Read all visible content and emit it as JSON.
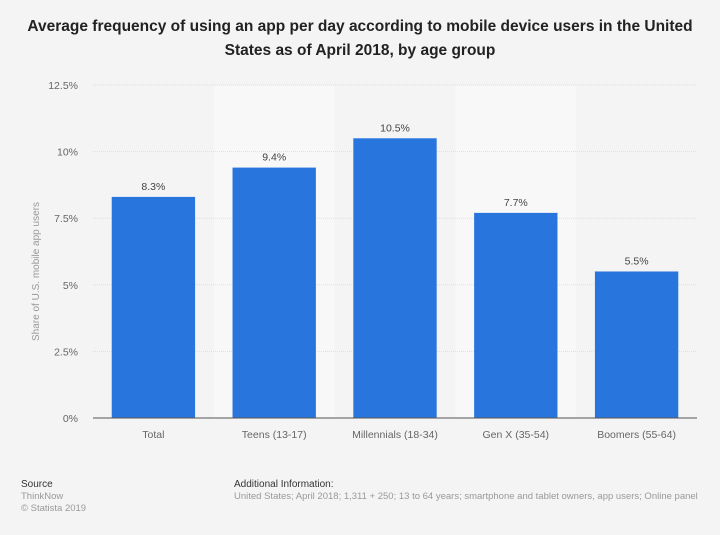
{
  "title": "Average frequency of using an app per day according to mobile device users in the United States as of April 2018, by age group",
  "colors": {
    "bar": "#2876dd",
    "band": "#f8f8f8",
    "grid": "#dddddd",
    "axis": "#555555",
    "text": "#666666",
    "background": "#f4f4f4"
  },
  "chart_data": {
    "type": "bar",
    "title": "Average frequency of using an app per day according to mobile device users in the United States as of April 2018, by age group",
    "categories": [
      "Total",
      "Teens (13-17)",
      "Millennials (18-34)",
      "Gen X (35-54)",
      "Boomers (55-64)"
    ],
    "values": [
      8.3,
      9.4,
      10.5,
      7.7,
      5.5
    ],
    "data_labels": [
      "8.3%",
      "9.4%",
      "10.5%",
      "7.7%",
      "5.5%"
    ],
    "xlabel": "",
    "ylabel": "Share of U.S. mobile app users",
    "ylim": [
      0,
      12.5
    ],
    "yticks": [
      0,
      2.5,
      5,
      7.5,
      10,
      12.5
    ],
    "ytick_labels": [
      "0%",
      "2.5%",
      "5%",
      "7.5%",
      "10%",
      "12.5%"
    ],
    "grid": true,
    "legend": "none"
  },
  "footer": {
    "source_heading": "Source",
    "source_name": "ThinkNow",
    "copyright": "© Statista 2019",
    "additional_heading": "Additional Information:",
    "additional_text": "United States; April 2018; 1,311 + 250; 13 to 64 years; smartphone and tablet owners, app users; Online panel"
  }
}
